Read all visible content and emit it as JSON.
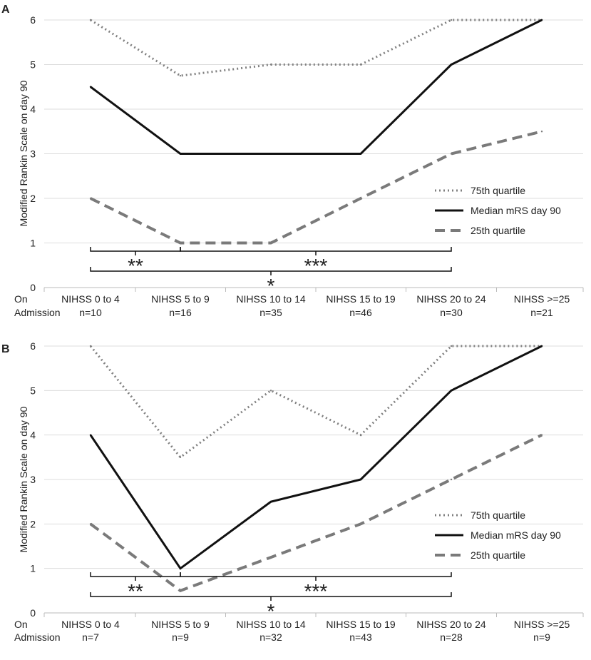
{
  "colors": {
    "q75": "#808080",
    "median": "#111111",
    "q25": "#7a7a7a",
    "grid": "#dddddd",
    "axis": "#bbbbbb",
    "bracket": "#111111"
  },
  "chart_data": [
    {
      "type": "line",
      "panel": "A",
      "ylabel": "Modified Rankin Scale on day 90",
      "ylim": [
        0,
        6
      ],
      "yticks": [
        "0",
        "1",
        "2",
        "3",
        "4",
        "5",
        "6"
      ],
      "row_label": [
        "On",
        "Admission"
      ],
      "categories": [
        "NIHSS 0 to 4",
        "NIHSS 5 to 9",
        "NIHSS 10 to 14",
        "NIHSS 15 to 19",
        "NIHSS 20 to 24",
        "NIHSS >=25"
      ],
      "counts": [
        "n=10",
        "n=16",
        "n=35",
        "n=46",
        "n=30",
        "n=21"
      ],
      "series": [
        {
          "name": "75th quartile",
          "style": "dotted",
          "values": [
            6,
            4.75,
            5,
            5,
            6,
            6
          ]
        },
        {
          "name": "Median mRS day 90",
          "style": "solid",
          "values": [
            4.5,
            3,
            3,
            3,
            5,
            6
          ]
        },
        {
          "name": "25th quartile",
          "style": "dashed",
          "values": [
            2,
            1,
            1,
            2,
            3,
            3.5
          ]
        }
      ],
      "legend_position": "right-middle",
      "significance": [
        {
          "from": 0,
          "to": 1,
          "label": "**",
          "level": 1
        },
        {
          "from": 1,
          "to": 4,
          "label": "***",
          "level": 1
        },
        {
          "from": 0,
          "to": 4,
          "label": "*",
          "level": 2
        }
      ]
    },
    {
      "type": "line",
      "panel": "B",
      "ylabel": "Modified Rankin Scale on day 90",
      "ylim": [
        0,
        6
      ],
      "yticks": [
        "0",
        "1",
        "2",
        "3",
        "4",
        "5",
        "6"
      ],
      "row_label": [
        "On",
        "Admission"
      ],
      "categories": [
        "NIHSS 0 to 4",
        "NIHSS 5 to 9",
        "NIHSS 10 to 14",
        "NIHSS 15 to 19",
        "NIHSS 20 to 24",
        "NIHSS >=25"
      ],
      "counts": [
        "n=7",
        "n=9",
        "n=32",
        "n=43",
        "n=28",
        "n=9"
      ],
      "series": [
        {
          "name": "75th quartile",
          "style": "dotted",
          "values": [
            6,
            3.5,
            5,
            4,
            6,
            6
          ]
        },
        {
          "name": "Median mRS day 90",
          "style": "solid",
          "values": [
            4,
            1,
            2.5,
            3,
            5,
            6
          ]
        },
        {
          "name": "25th quartile",
          "style": "dashed",
          "values": [
            2,
            0.5,
            1.25,
            2,
            3,
            4
          ]
        }
      ],
      "legend_position": "right-lower",
      "significance": [
        {
          "from": 0,
          "to": 1,
          "label": "**",
          "level": 1
        },
        {
          "from": 1,
          "to": 4,
          "label": "***",
          "level": 1
        },
        {
          "from": 0,
          "to": 4,
          "label": "*",
          "level": 2
        }
      ]
    }
  ]
}
